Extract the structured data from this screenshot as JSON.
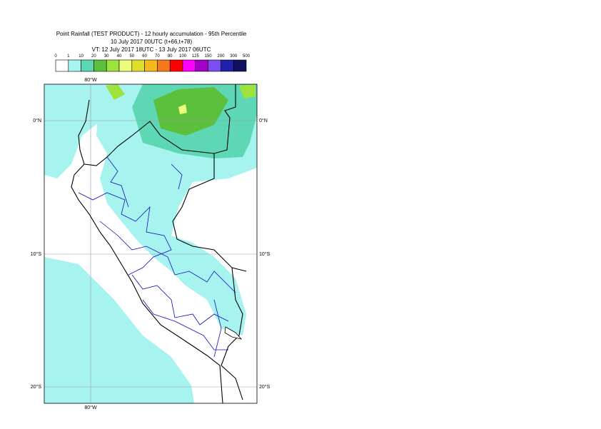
{
  "header": {
    "title": "Point Rainfall (TEST PRODUCT) - 12 hourly accumulation - 95th Percentile",
    "base_time": "10 July 2017 00UTC (t+66,t+78)",
    "valid_time": "VT: 12 July 2017 18UTC - 13 July 2017 06UTC"
  },
  "legend": {
    "labels": [
      0,
      1,
      10,
      20,
      30,
      40,
      50,
      60,
      70,
      80,
      100,
      125,
      150,
      200,
      300,
      500
    ],
    "colors": [
      "#ffffff",
      "#a6f3f0",
      "#5ed7b5",
      "#5cc03c",
      "#9ee33d",
      "#eefc7e",
      "#dede2c",
      "#f5b81c",
      "#f4791b",
      "#ff0000",
      "#ff00ff",
      "#a400c8",
      "#7c4ef2",
      "#2020a8",
      "#101060"
    ]
  },
  "map": {
    "lon_labels": [
      "80°W"
    ],
    "lat_labels": [
      "0°N",
      "10°S",
      "20°S"
    ]
  }
}
